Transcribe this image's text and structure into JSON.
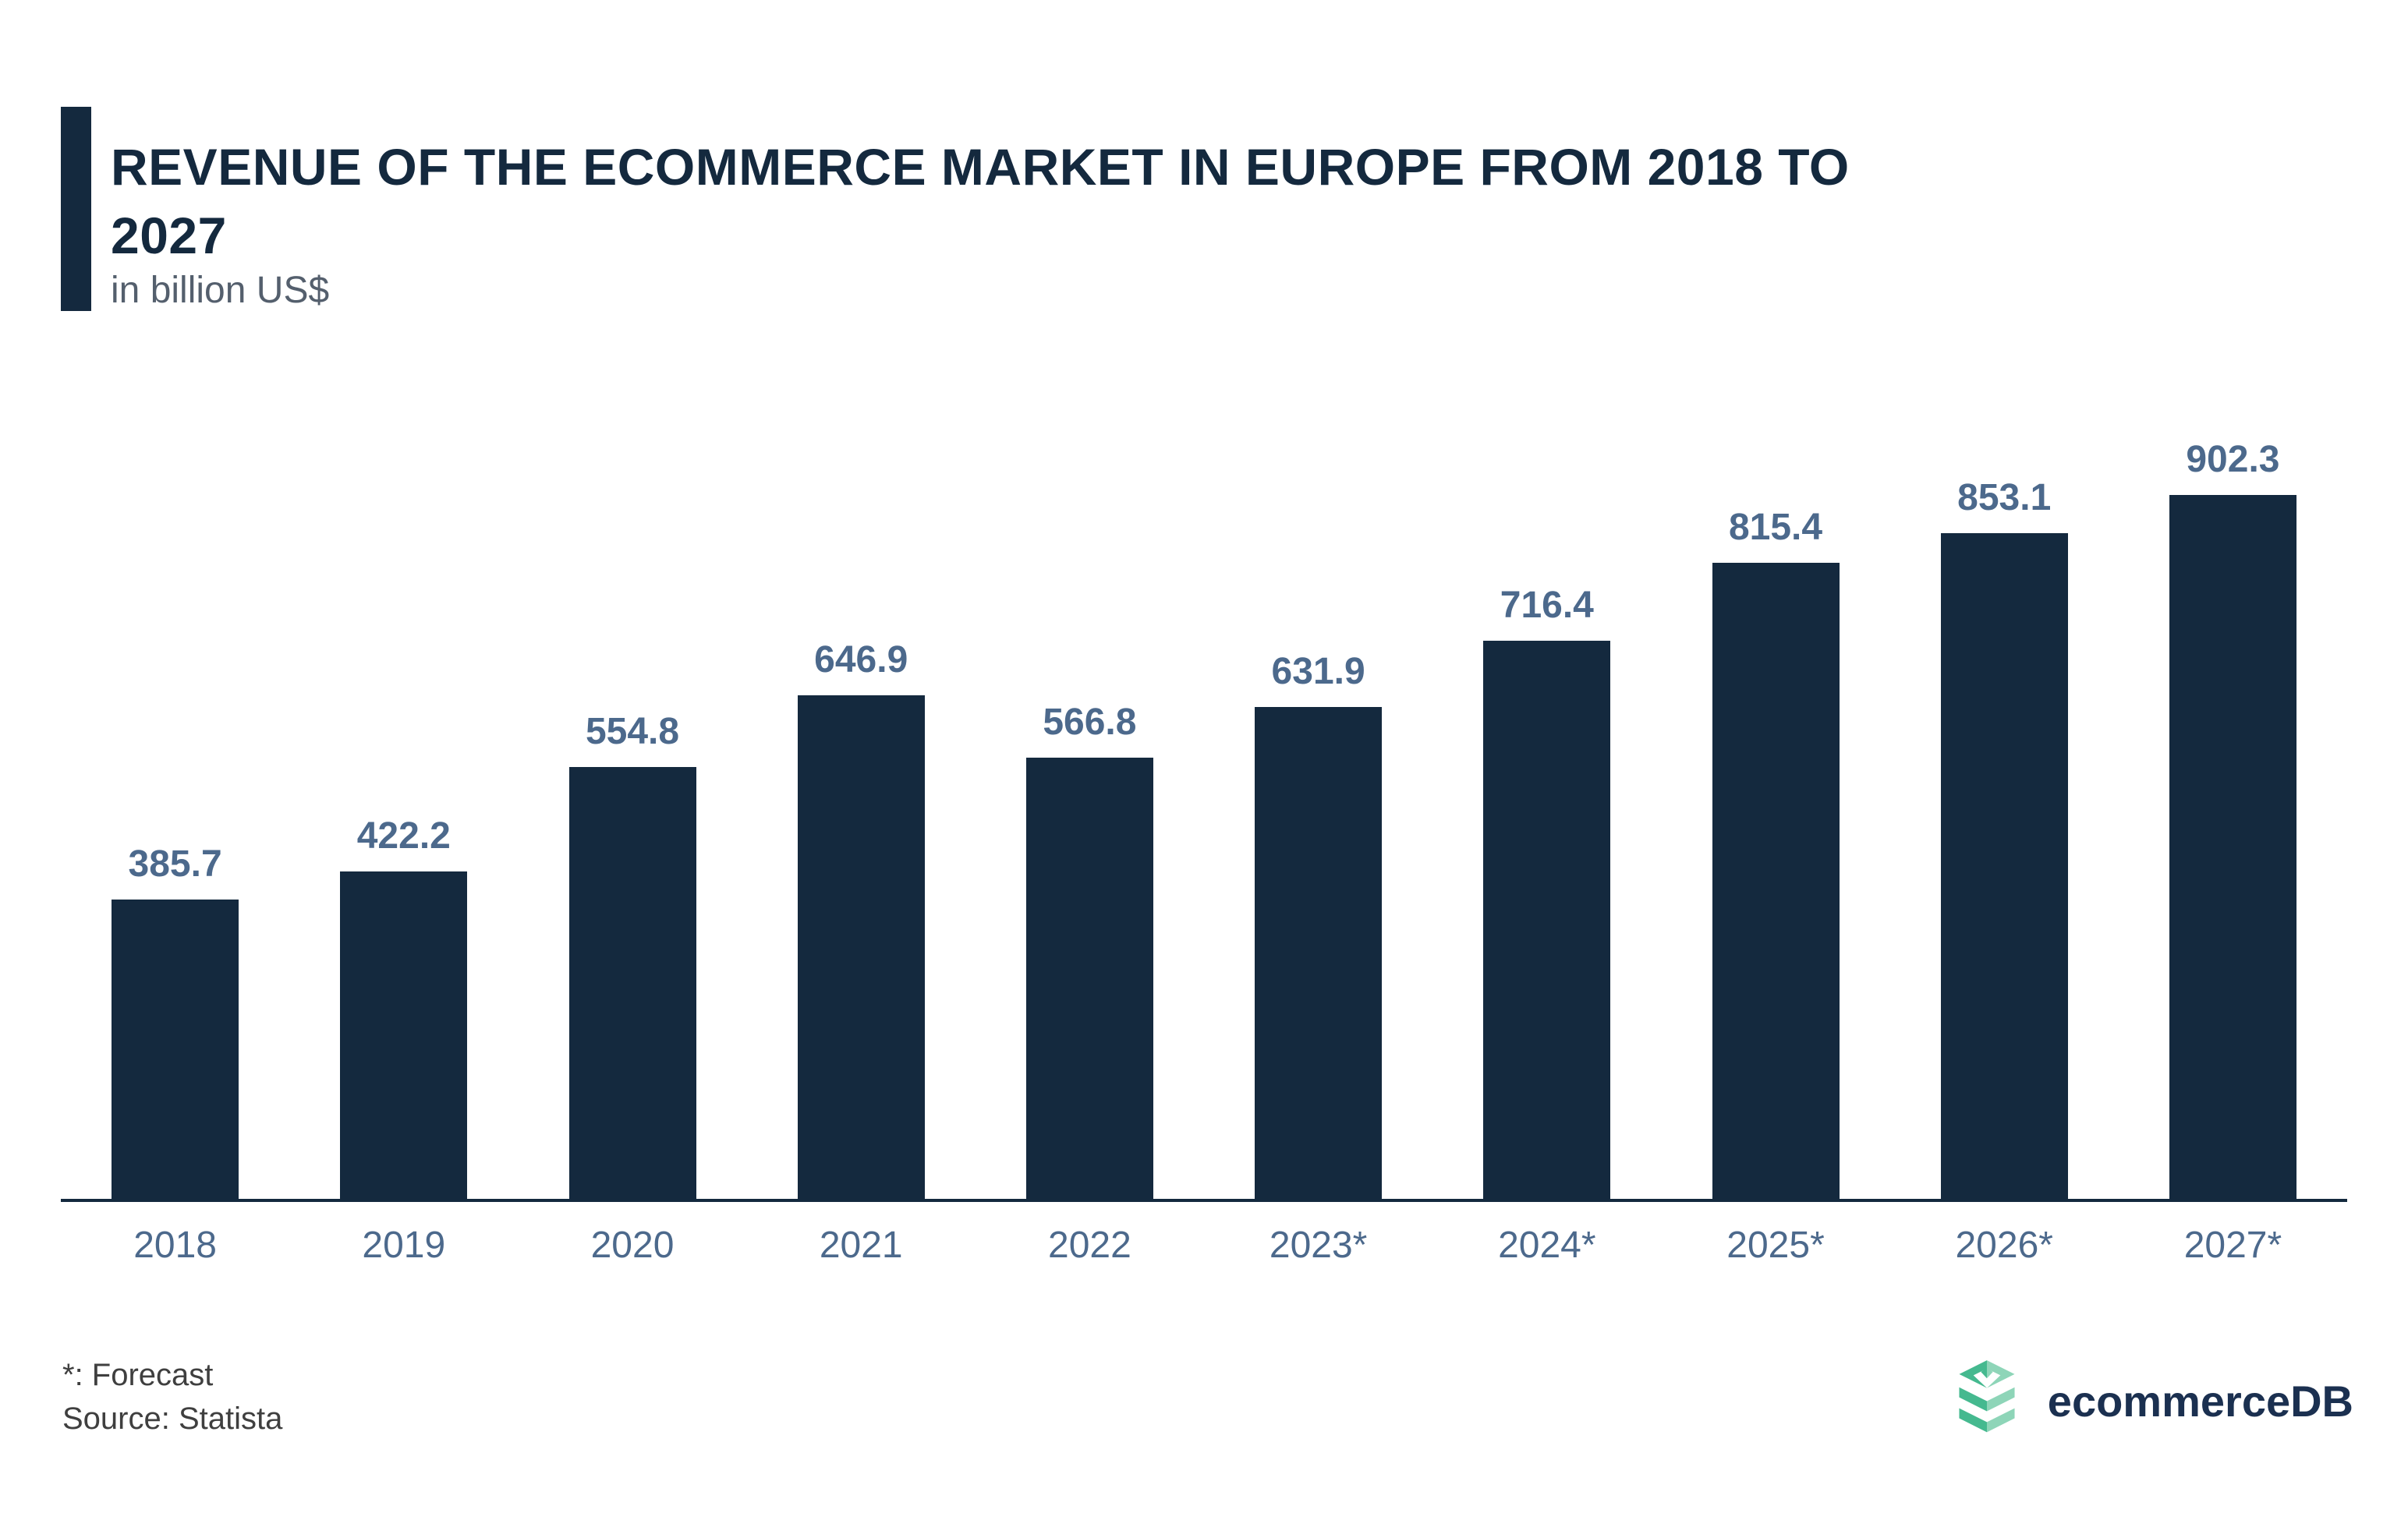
{
  "header": {
    "title_line1": "REVENUE OF THE ECOMMERCE MARKET IN EUROPE FROM 2018 TO",
    "title_line2": "2027",
    "subtitle": "in billion US$"
  },
  "chart_data": {
    "type": "bar",
    "title": "Revenue of the ecommerce market in Europe from 2018 to 2027",
    "unit": "in billion US$",
    "categories": [
      "2018",
      "2019",
      "2020",
      "2021",
      "2022",
      "2023*",
      "2024*",
      "2025*",
      "2026*",
      "2027*"
    ],
    "values": [
      385.7,
      422.2,
      554.8,
      646.9,
      566.8,
      631.9,
      716.4,
      815.4,
      853.1,
      902.3
    ],
    "value_label_format": "one-decimal",
    "value_labels_position": "above bars",
    "forecast_categories": [
      "2023*",
      "2024*",
      "2025*",
      "2026*",
      "2027*"
    ],
    "xlabel": "",
    "ylabel": "",
    "ylim": [
      0,
      950
    ],
    "grid": false,
    "legend": "none"
  },
  "footer": {
    "notes": [
      "*: Forecast",
      "Source: Statista"
    ],
    "brand": {
      "name": "ecommerceDB"
    }
  },
  "colors": {
    "background": "#FFFFFF",
    "navy": "#14293E",
    "steel": "#4C698C",
    "subtitle_grey": "#545F6D",
    "footer_grey": "#3F3F3F",
    "logo_navy": "#1B3050",
    "green_dark": "#45B98F",
    "green_light": "#8ED5B8"
  }
}
